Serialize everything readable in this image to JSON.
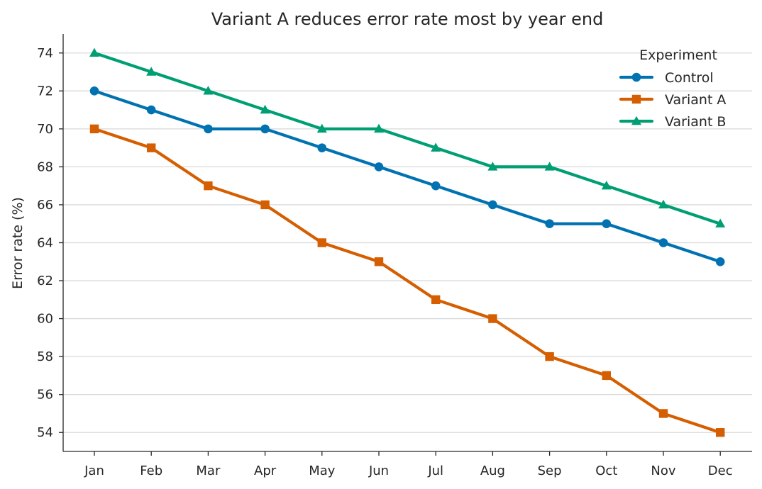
{
  "chart_data": {
    "type": "line",
    "title": "Variant A reduces error rate most by year end",
    "xlabel": "",
    "ylabel": "Error rate (%)",
    "categories": [
      "Jan",
      "Feb",
      "Mar",
      "Apr",
      "May",
      "Jun",
      "Jul",
      "Aug",
      "Sep",
      "Oct",
      "Nov",
      "Dec"
    ],
    "ylim": [
      53,
      75
    ],
    "yticks": [
      54,
      56,
      58,
      60,
      62,
      64,
      66,
      68,
      70,
      72,
      74
    ],
    "grid": "horizontal",
    "legend": {
      "title": "Experiment",
      "position": "top-right"
    },
    "series": [
      {
        "name": "Control",
        "color": "#0072b2",
        "marker": "circle",
        "values": [
          72,
          71,
          70,
          70,
          69,
          68,
          67,
          66,
          65,
          65,
          64,
          63
        ]
      },
      {
        "name": "Variant A",
        "color": "#d55e00",
        "marker": "square",
        "values": [
          70,
          69,
          67,
          66,
          64,
          63,
          61,
          60,
          58,
          57,
          55,
          54
        ]
      },
      {
        "name": "Variant B",
        "color": "#009e73",
        "marker": "triangle",
        "values": [
          74,
          73,
          72,
          71,
          70,
          70,
          69,
          68,
          68,
          67,
          66,
          65
        ]
      }
    ]
  }
}
